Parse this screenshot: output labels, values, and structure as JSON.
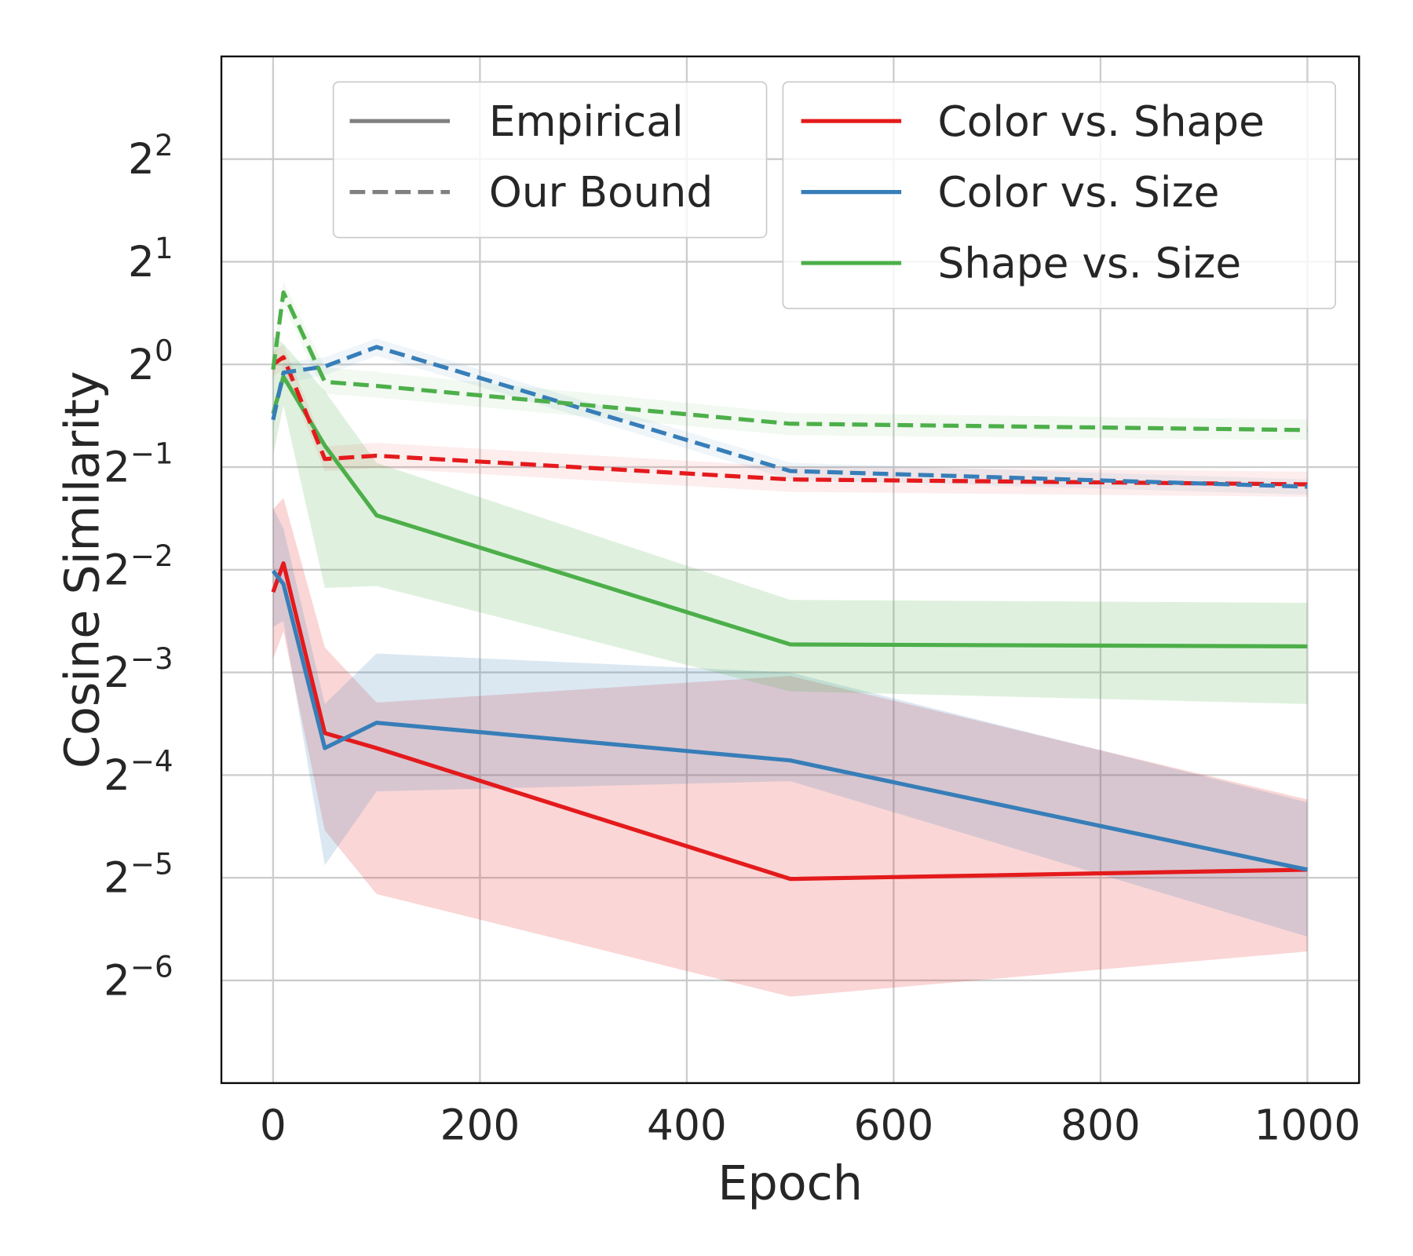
{
  "chart_data": {
    "type": "line",
    "xlabel": "Epoch",
    "ylabel": "Cosine Similarity",
    "xlim": [
      -50,
      1050
    ],
    "ylim": [
      0.0078125,
      8
    ],
    "yscale": "log2",
    "grid": true,
    "x": [
      0,
      10,
      50,
      100,
      500,
      1000
    ],
    "xticks": [
      0,
      200,
      400,
      600,
      800,
      1000
    ],
    "xtick_labels": [
      "0",
      "200",
      "400",
      "600",
      "800",
      "1000"
    ],
    "yticks": [
      {
        "value": 4,
        "base": "2",
        "exp": "2"
      },
      {
        "value": 2,
        "base": "2",
        "exp": "1"
      },
      {
        "value": 1,
        "base": "2",
        "exp": "0"
      },
      {
        "value": 0.5,
        "base": "2",
        "exp": "−1"
      },
      {
        "value": 0.25,
        "base": "2",
        "exp": "−2"
      },
      {
        "value": 0.125,
        "base": "2",
        "exp": "−3"
      },
      {
        "value": 0.0625,
        "base": "2",
        "exp": "−4"
      },
      {
        "value": 0.03125,
        "base": "2",
        "exp": "−5"
      },
      {
        "value": 0.015625,
        "base": "2",
        "exp": "−6"
      }
    ],
    "style_legend": [
      {
        "label": "Empirical",
        "dash": "solid",
        "color": "#808080"
      },
      {
        "label": "Our Bound",
        "dash": "dashed",
        "color": "#808080"
      }
    ],
    "color_legend": [
      {
        "label": "Color vs. Shape",
        "color": "#e41a1c"
      },
      {
        "label": "Color vs. Size",
        "color": "#377eb8"
      },
      {
        "label": "Shape vs. Size",
        "color": "#4daf4a"
      }
    ],
    "series": [
      {
        "name": "Color vs. Shape",
        "kind": "Empirical",
        "color": "#e41a1c",
        "dash": "solid",
        "values": [
          0.215,
          0.261,
          0.083,
          0.075,
          0.031,
          0.033
        ],
        "lower": [
          0.137,
          0.165,
          0.043,
          0.028,
          0.014,
          0.019
        ],
        "upper": [
          0.376,
          0.406,
          0.148,
          0.102,
          0.122,
          0.053
        ]
      },
      {
        "name": "Color vs. Size",
        "kind": "Empirical",
        "color": "#377eb8",
        "dash": "solid",
        "values": [
          0.248,
          0.227,
          0.075,
          0.089,
          0.069,
          0.033
        ],
        "lower": [
          0.17,
          0.177,
          0.034,
          0.056,
          0.06,
          0.021
        ],
        "upper": [
          0.379,
          0.33,
          0.101,
          0.142,
          0.125,
          0.052
        ]
      },
      {
        "name": "Shape vs. Size",
        "kind": "Empirical",
        "color": "#4daf4a",
        "dash": "solid",
        "values": [
          0.717,
          0.92,
          0.578,
          0.361,
          0.151,
          0.149
        ],
        "lower": [
          0.543,
          0.758,
          0.221,
          0.224,
          0.11,
          0.101
        ],
        "upper": [
          1.206,
          1.149,
          0.835,
          0.514,
          0.204,
          0.2
        ]
      },
      {
        "name": "Color vs. Shape",
        "kind": "Our Bound",
        "color": "#e41a1c",
        "dash": "dashed",
        "values": [
          1.0,
          1.05,
          0.528,
          0.54,
          0.46,
          0.445
        ],
        "lower": [
          0.92,
          0.97,
          0.486,
          0.497,
          0.423,
          0.409
        ],
        "upper": [
          1.09,
          1.14,
          0.575,
          0.589,
          0.501,
          0.485
        ]
      },
      {
        "name": "Color vs. Size",
        "kind": "Our Bound",
        "color": "#377eb8",
        "dash": "dashed",
        "values": [
          0.688,
          0.946,
          0.986,
          1.125,
          0.487,
          0.438
        ],
        "lower": [
          0.64,
          0.88,
          0.93,
          1.06,
          0.46,
          0.415
        ],
        "upper": [
          0.74,
          1.01,
          1.05,
          1.19,
          0.515,
          0.46
        ]
      },
      {
        "name": "Shape vs. Size",
        "kind": "Our Bound",
        "color": "#4daf4a",
        "dash": "dashed",
        "values": [
          0.966,
          1.625,
          0.889,
          0.865,
          0.67,
          0.642
        ],
        "lower": [
          0.89,
          1.5,
          0.82,
          0.8,
          0.62,
          0.6
        ],
        "upper": [
          1.05,
          1.75,
          0.98,
          0.95,
          0.72,
          0.69
        ]
      }
    ]
  }
}
